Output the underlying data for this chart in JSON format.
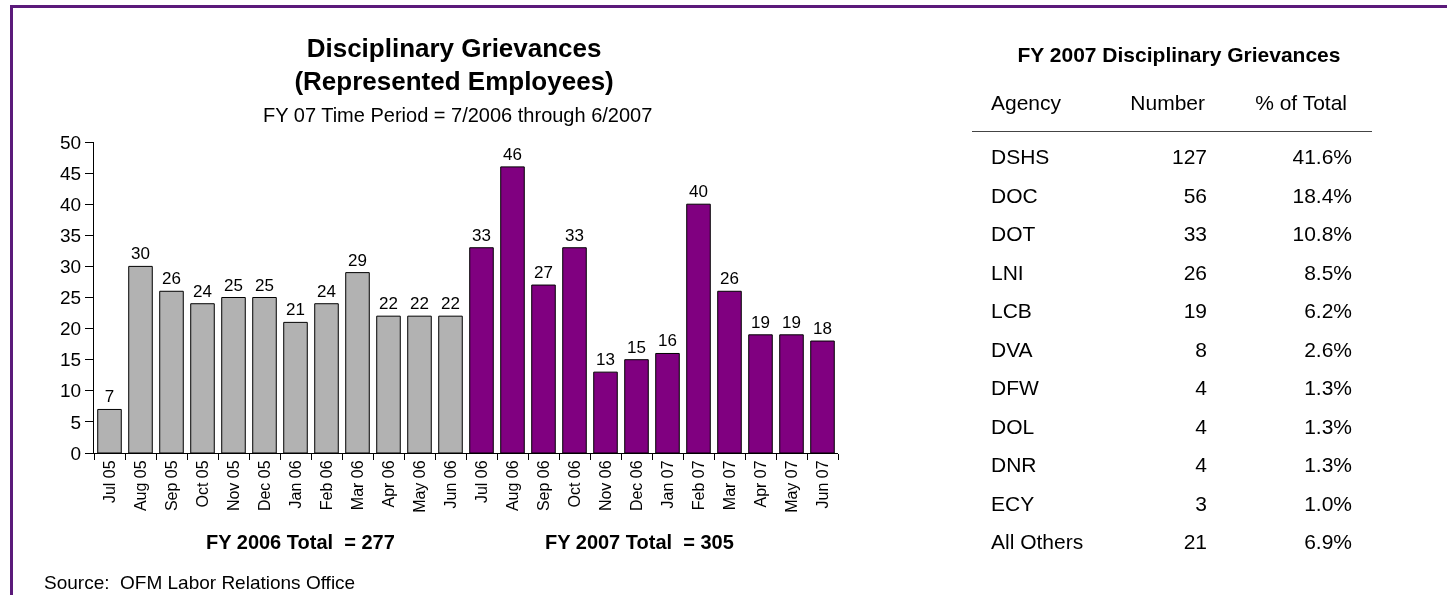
{
  "chart_data": [
    {
      "type": "bar",
      "title": "Disciplinary Grievances\n(Represented Employees)",
      "subtitle": "FY 07 Time Period = 7/2006 through 6/2007",
      "categories": [
        "Jul 05",
        "Aug 05",
        "Sep 05",
        "Oct 05",
        "Nov 05",
        "Dec 05",
        "Jan 06",
        "Feb 06",
        "Mar 06",
        "Apr 06",
        "May 06",
        "Jun 06",
        "Jul 06",
        "Aug 06",
        "Sep 06",
        "Oct 06",
        "Nov 06",
        "Dec 06",
        "Jan 07",
        "Feb 07",
        "Mar 07",
        "Apr 07",
        "May 07",
        "Jun 07"
      ],
      "values": [
        7,
        30,
        26,
        24,
        25,
        25,
        21,
        24,
        29,
        22,
        22,
        22,
        33,
        46,
        27,
        33,
        13,
        15,
        16,
        40,
        26,
        19,
        19,
        18
      ],
      "colors": [
        "#b2b2b2",
        "#b2b2b2",
        "#b2b2b2",
        "#b2b2b2",
        "#b2b2b2",
        "#b2b2b2",
        "#b2b2b2",
        "#b2b2b2",
        "#b2b2b2",
        "#b2b2b2",
        "#b2b2b2",
        "#b2b2b2",
        "#800080",
        "#800080",
        "#800080",
        "#800080",
        "#800080",
        "#800080",
        "#800080",
        "#800080",
        "#800080",
        "#800080",
        "#800080",
        "#800080"
      ],
      "ylim": [
        0,
        50
      ],
      "yticks": [
        0,
        5,
        10,
        15,
        20,
        25,
        30,
        35,
        40,
        45,
        50
      ],
      "data_labels": true,
      "annotations": [
        "FY 2006 Total  = 277",
        "FY 2007 Total  = 305",
        "Source:  OFM Labor Relations Office"
      ]
    },
    {
      "type": "other",
      "title": "FY 2007 Disciplinary Grievances",
      "xlabel": "Agency",
      "categories": [
        "DSHS",
        "DOC",
        "DOT",
        "LNI",
        "LCB",
        "DVA",
        "DFW",
        "DOL",
        "DNR",
        "ECY",
        "All Others"
      ],
      "series": [
        {
          "name": "Number",
          "values": [
            127,
            56,
            33,
            26,
            19,
            8,
            4,
            4,
            4,
            3,
            21
          ]
        },
        {
          "name": "% of Total",
          "values": [
            41.6,
            18.4,
            10.8,
            8.5,
            6.2,
            2.6,
            1.3,
            1.3,
            1.3,
            1.0,
            6.9
          ],
          "value_labels": [
            "41.6%",
            "18.4%",
            "10.8%",
            "8.5%",
            "6.2%",
            "2.6%",
            "1.3%",
            "1.3%",
            "1.3%",
            "1.0%",
            "6.9%"
          ]
        }
      ],
      "data_labels": true
    }
  ]
}
